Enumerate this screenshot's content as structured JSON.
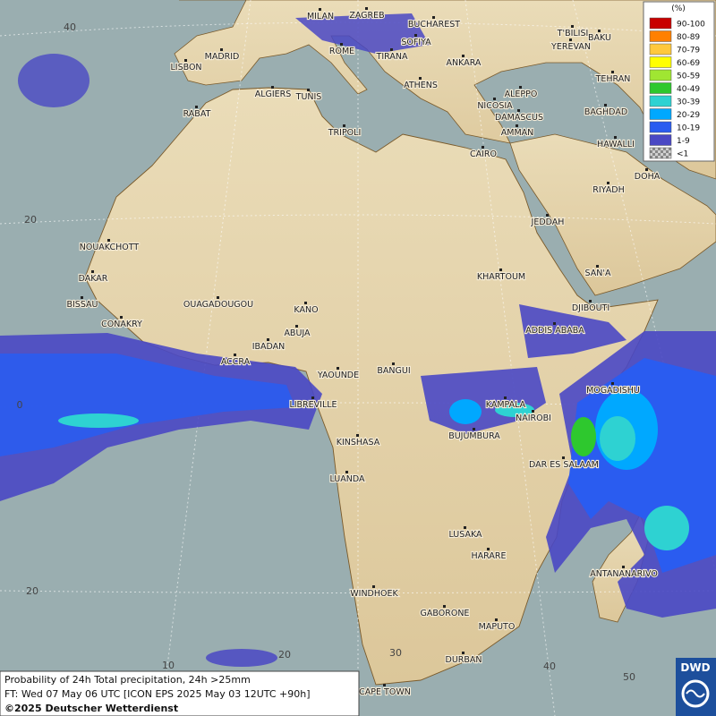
{
  "legend": {
    "title": "(%)",
    "entries": [
      {
        "label": "90-100",
        "color": "#c80000"
      },
      {
        "label": "80-89",
        "color": "#ff8000"
      },
      {
        "label": "70-79",
        "color": "#ffc83c"
      },
      {
        "label": "60-69",
        "color": "#ffff00"
      },
      {
        "label": "50-59",
        "color": "#a0e632"
      },
      {
        "label": "40-49",
        "color": "#2ec82e"
      },
      {
        "label": "30-39",
        "color": "#2ed2d2"
      },
      {
        "label": "20-29",
        "color": "#00a8ff"
      },
      {
        "label": "10-19",
        "color": "#2a5cf0"
      },
      {
        "label": "1-9",
        "color": "#4a48c4"
      },
      {
        "label": "<1",
        "color": "#b8b8b8"
      }
    ]
  },
  "cities": [
    "MILAN",
    "ZAGREB",
    "BUCHAREST",
    "BAKU",
    "T'BILISI",
    "YEREVAN",
    "TEHRAN",
    "MADRID",
    "ROME",
    "SOFIYA",
    "TIRANA",
    "ANKARA",
    "LISBON",
    "ATHENS",
    "ALGIERS",
    "TUNIS",
    "RABAT",
    "ALEPPO",
    "NICOSIA",
    "BAGHDAD",
    "DAMASCUS",
    "AMMAN",
    "TRIPOLI",
    "HAWALLI",
    "DOHA",
    "CAIRO",
    "RIYADH",
    "JEDDAH",
    "NOUAKCHOTT",
    "DAKAR",
    "KHARTOUM",
    "SAN'A",
    "BISSAU",
    "CONAKRY",
    "OUAGADOUGOU",
    "KANO",
    "DJIBOUTI",
    "ABUJA",
    "IBADAN",
    "ADDIS ABABA",
    "ACCRA",
    "YAOUNDE",
    "BANGUI",
    "MOGADISHU",
    "LIBREVILLE",
    "KAMPALA",
    "NAIROBI",
    "BUJUMBURA",
    "KINSHASA",
    "DAR ES SALAAM",
    "LUANDA",
    "LUSAKA",
    "HARARE",
    "ANTANANARIVO",
    "WINDHOEK",
    "GABORONE",
    "MAPUTO",
    "DURBAN",
    "CAPE TOWN"
  ],
  "grid_labels": {
    "latitudes": [
      "40",
      "20",
      "0",
      "20"
    ],
    "longitudes": [
      "10",
      "20",
      "30",
      "40",
      "50"
    ]
  },
  "info": {
    "line1": "Probability of 24h Total precipitation, 24h >25mm",
    "line2": "FT: Wed 07 May 06 UTC [ICON EPS 2025 May 03 12UTC +90h]",
    "copyright": "©2025 Deutscher Wetterdienst"
  },
  "logo": "DWD"
}
